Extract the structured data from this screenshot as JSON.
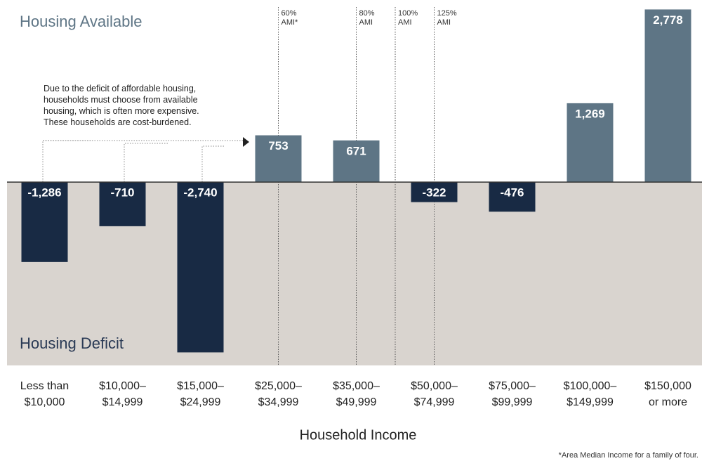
{
  "chart_data": {
    "type": "bar",
    "title": "Housing Available",
    "lower_title": "Housing Deficit",
    "x_label": "Household Income",
    "footnote": "*Area Median Income for a family of four.",
    "annotation": [
      "Due to the deficit of affordable housing,",
      "households must choose from available",
      "housing, which is often more expensive.",
      "These households are cost-burdened."
    ],
    "ami_markers": [
      [
        "60%",
        "AMI*"
      ],
      [
        "80%",
        "AMI"
      ],
      [
        "100%",
        "AMI"
      ],
      [
        "125%",
        "AMI"
      ]
    ],
    "categories": [
      [
        "Less than",
        "$10,000"
      ],
      [
        "$10,000–",
        "$14,999"
      ],
      [
        "$15,000–",
        "$24,999"
      ],
      [
        "$25,000–",
        "$34,999"
      ],
      [
        "$35,000–",
        "$49,999"
      ],
      [
        "$50,000–",
        "$74,999"
      ],
      [
        "$75,000–",
        "$99,999"
      ],
      [
        "$100,000–",
        "$149,999"
      ],
      [
        "$150,000",
        "or more"
      ]
    ],
    "values": [
      -1286,
      -710,
      -2740,
      753,
      671,
      -322,
      -476,
      1269,
      2778
    ],
    "value_labels": [
      "-1,286",
      "-710",
      "-2,740",
      "753",
      "671",
      "-322",
      "-476",
      "1,269",
      "2,778"
    ],
    "color_positive": "#5e7585",
    "color_negative": "#182a44",
    "ylim": [
      -2950,
      2930
    ]
  }
}
